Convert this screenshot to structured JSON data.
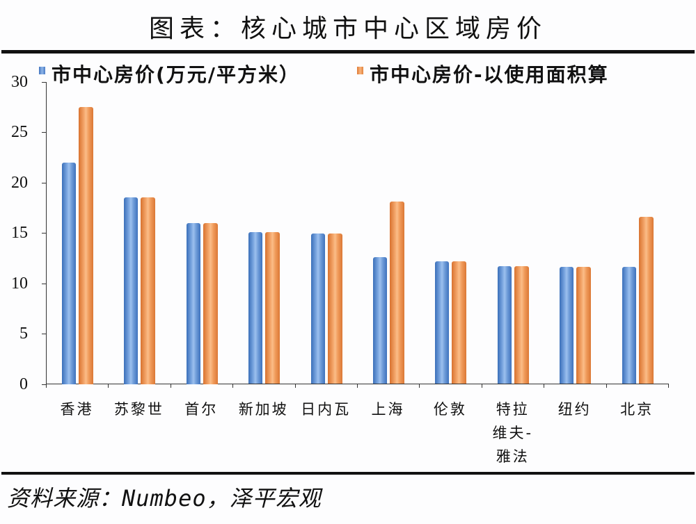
{
  "title": "图表：核心城市中心区域房价",
  "legend": {
    "series1": "市中心房价(万元/平方米）",
    "series2": "市中心房价-以使用面积算"
  },
  "source": "资料来源：Numbeo，泽平宏观",
  "colors": {
    "series1": "#4a7cc6",
    "series2": "#ec8f4c"
  },
  "chart_data": {
    "type": "bar",
    "title": "图表：核心城市中心区域房价",
    "xlabel": "",
    "ylabel": "",
    "ylim": [
      0,
      30
    ],
    "yticks": [
      0,
      5,
      10,
      15,
      20,
      25,
      30
    ],
    "grid": false,
    "legend_position": "top",
    "categories": [
      "香港",
      "苏黎世",
      "首尔",
      "新加坡",
      "日内瓦",
      "上海",
      "伦敦",
      "特拉维夫-雅法",
      "纽约",
      "北京"
    ],
    "series": [
      {
        "name": "市中心房价(万元/平方米）",
        "color": "#4a7cc6",
        "values": [
          22.0,
          18.5,
          16.0,
          15.1,
          14.9,
          12.6,
          12.2,
          11.7,
          11.6,
          11.6
        ]
      },
      {
        "name": "市中心房价-以使用面积算",
        "color": "#ec8f4c",
        "values": [
          27.5,
          18.5,
          16.0,
          15.1,
          14.9,
          18.1,
          12.2,
          11.7,
          11.6,
          16.6
        ]
      }
    ],
    "source": "资料来源：Numbeo，泽平宏观"
  }
}
